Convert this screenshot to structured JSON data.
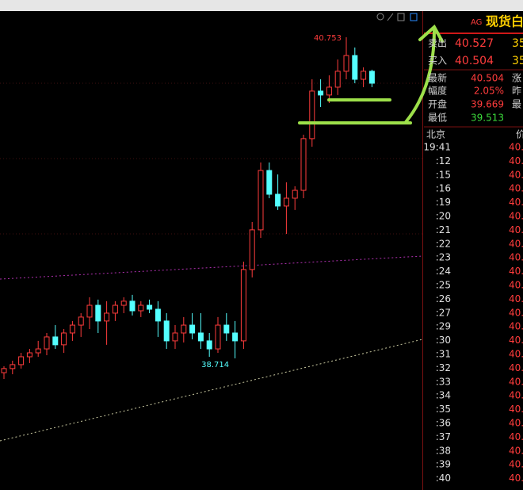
{
  "chart_data": {
    "type": "candlestick",
    "open": [
      38.623,
      38.649,
      38.674,
      38.724,
      38.749,
      38.774,
      38.85,
      38.8,
      38.875,
      38.925,
      38.976,
      39.051,
      38.951,
      39.001,
      39.051,
      39.077,
      39.016,
      39.051,
      39.026,
      38.951,
      38.825,
      38.875,
      38.925,
      38.875,
      38.825,
      38.774,
      38.925,
      38.875,
      38.825,
      39.278,
      39.53,
      39.907,
      39.756,
      39.681,
      39.731,
      39.781,
      40.109,
      40.411,
      40.386,
      40.436,
      40.537,
      40.637,
      40.486,
      40.537
    ],
    "high": [
      38.664,
      38.699,
      38.749,
      38.774,
      38.825,
      38.875,
      38.925,
      38.9,
      38.951,
      39.001,
      39.102,
      39.087,
      39.077,
      39.077,
      39.102,
      39.117,
      39.077,
      39.087,
      39.077,
      39.001,
      38.925,
      38.976,
      39.001,
      39.001,
      38.875,
      38.976,
      39.001,
      38.951,
      39.328,
      39.58,
      39.958,
      39.958,
      39.882,
      39.832,
      39.807,
      40.134,
      40.486,
      40.486,
      40.511,
      40.612,
      40.753,
      40.688,
      40.562,
      40.547
    ],
    "low": [
      38.583,
      38.613,
      38.649,
      38.684,
      38.724,
      38.734,
      38.774,
      38.749,
      38.825,
      38.85,
      38.9,
      38.875,
      38.8,
      38.951,
      39.001,
      38.986,
      38.976,
      39.001,
      38.85,
      38.774,
      38.774,
      38.815,
      38.835,
      38.774,
      38.724,
      38.749,
      38.825,
      38.714,
      38.774,
      39.228,
      39.479,
      39.731,
      39.656,
      39.504,
      39.656,
      39.731,
      40.058,
      40.31,
      40.335,
      40.386,
      40.486,
      40.461,
      40.436,
      40.436
    ],
    "close": [
      38.649,
      38.674,
      38.724,
      38.749,
      38.774,
      38.85,
      38.8,
      38.875,
      38.925,
      38.976,
      39.051,
      38.951,
      39.001,
      39.051,
      39.077,
      39.016,
      39.051,
      39.026,
      38.951,
      38.825,
      38.875,
      38.925,
      38.875,
      38.825,
      38.774,
      38.925,
      38.875,
      38.825,
      39.278,
      39.53,
      39.907,
      39.756,
      39.681,
      39.731,
      39.781,
      40.109,
      40.411,
      40.386,
      40.436,
      40.537,
      40.637,
      40.486,
      40.537,
      40.461
    ],
    "ylim": [
      37.878,
      40.914
    ],
    "max_label": 40.753,
    "min_label": 38.714,
    "up_color": "#ff3c3c",
    "down_color": "#54ffff"
  },
  "quote": {
    "symbol": "AG",
    "name": "现货白",
    "rows": [
      [
        "卖出",
        "40.527",
        "35"
      ],
      [
        "买入",
        "40.504",
        "35"
      ],
      [
        "最新",
        "40.504",
        "涨"
      ],
      [
        "幅度",
        "2.05%",
        "昨"
      ],
      [
        "开盘",
        "39.669",
        "最"
      ],
      [
        "最低",
        "39.513",
        ""
      ]
    ],
    "ticks_header": [
      "北京",
      "价"
    ],
    "ticks": [
      [
        "19:41",
        "40."
      ],
      [
        ":12",
        "40."
      ],
      [
        ":15",
        "40."
      ],
      [
        ":16",
        "40."
      ],
      [
        ":19",
        "40."
      ],
      [
        ":20",
        "40."
      ],
      [
        ":21",
        "40."
      ],
      [
        ":22",
        "40."
      ],
      [
        ":23",
        "40."
      ],
      [
        ":24",
        "40."
      ],
      [
        ":25",
        "40."
      ],
      [
        ":26",
        "40."
      ],
      [
        ":27",
        "40."
      ],
      [
        ":29",
        "40."
      ],
      [
        ":30",
        "40."
      ],
      [
        ":31",
        "40."
      ],
      [
        ":32",
        "40."
      ],
      [
        ":33",
        "40."
      ],
      [
        ":34",
        "40."
      ],
      [
        ":35",
        "40."
      ],
      [
        ":36",
        "40."
      ],
      [
        ":37",
        "40."
      ],
      [
        ":38",
        "40."
      ],
      [
        ":39",
        "40."
      ],
      [
        ":40",
        "40."
      ]
    ]
  }
}
